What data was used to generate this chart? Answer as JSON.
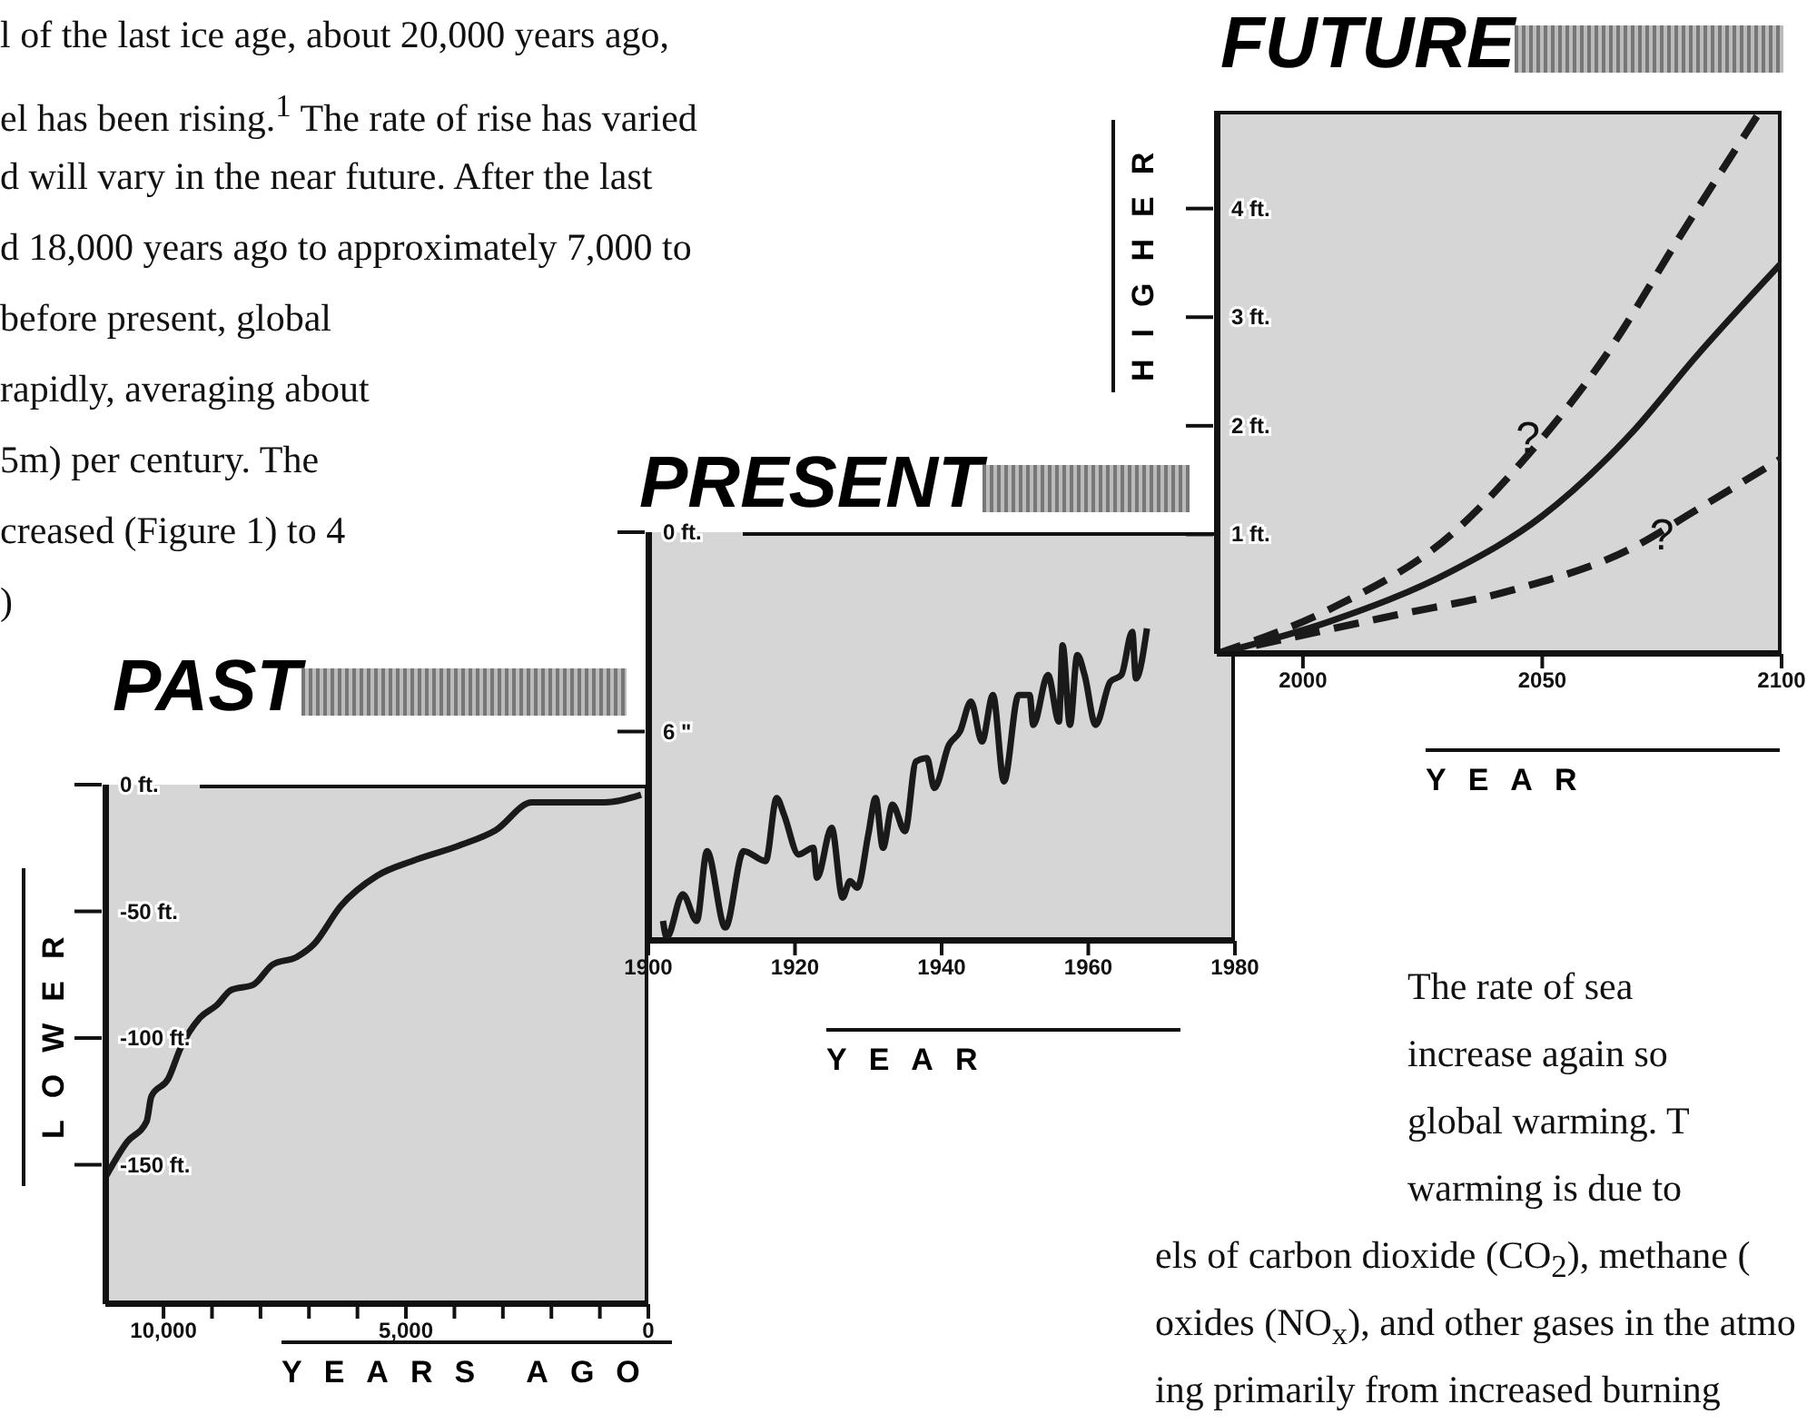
{
  "chart_data": [
    {
      "type": "line",
      "title": "PAST",
      "xlabel": "YEARS AGO",
      "ylabel": "LOWER",
      "xlim": [
        11200,
        0
      ],
      "xticks": [
        {
          "value": 10000,
          "label": "10,000"
        },
        {
          "value": 9000,
          "label": null
        },
        {
          "value": 8000,
          "label": null
        },
        {
          "value": 7000,
          "label": null
        },
        {
          "value": 6000,
          "label": null
        },
        {
          "value": 5000,
          "label": "5,000"
        },
        {
          "value": 4000,
          "label": null
        },
        {
          "value": 3000,
          "label": null
        },
        {
          "value": 2000,
          "label": null
        },
        {
          "value": 1000,
          "label": null
        },
        0
      ],
      "ylim": [
        -205,
        0
      ],
      "yticks": [
        {
          "value": 0,
          "label": "0 ft."
        },
        {
          "value": -50,
          "label": "-50 ft."
        },
        {
          "value": -100,
          "label": "-100 ft."
        },
        {
          "value": -150,
          "label": "-150 ft."
        }
      ],
      "line_style": "solid",
      "marker": "none",
      "grid": false,
      "series": [
        {
          "color": "#1a1a1a",
          "x": [
            11200,
            10750,
            10350,
            10250,
            9900,
            9650,
            9250,
            8900,
            8600,
            8150,
            7750,
            7250,
            6900,
            6350,
            5600,
            4850,
            3900,
            3150,
            2400,
            900,
            150
          ],
          "values": [
            -155,
            -141,
            -133,
            -123,
            -116,
            -104,
            -92,
            -87,
            -81,
            -79,
            -71,
            -68,
            -63,
            -48,
            -36,
            -30,
            -24,
            -18,
            -7,
            -7,
            -4
          ]
        }
      ],
      "annotations": [
        "l of the last ice age, about 20,000 years ago,",
        "el has been rising.$^{1}$ The rate of rise has varied",
        "d will vary in the near future.  After the last",
        "d 18,000 years ago to approximately 7,000 to",
        "before present, global",
        "rapidly, averaging about",
        "5m) per century.  The",
        "creased (Figure 1) to 4",
        ")"
      ]
    },
    {
      "type": "line",
      "title": "PRESENT",
      "xlabel": "YEAR",
      "xlim": [
        1900,
        1980
      ],
      "xticks": [
        1900,
        1920,
        1940,
        1960,
        1980
      ],
      "ylim": [
        -12.3,
        0
      ],
      "yticks": [
        {
          "value": 0,
          "label": "0 ft."
        },
        {
          "value": -6,
          "label": "6 \""
        }
      ],
      "line_style": "solid",
      "marker": "none",
      "grid": false,
      "series": [
        {
          "color": "#1a1a1a",
          "x": [
            1902,
            1902.5,
            1904.7,
            1906.6,
            1908,
            1910.5,
            1913,
            1916,
            1917.5,
            1918.5,
            1920.5,
            1922.5,
            1923,
            1925,
            1926.5,
            1927.5,
            1928.5,
            1930,
            1931,
            1932,
            1933.3,
            1935,
            1936.5,
            1938,
            1939,
            1941,
            1942.5,
            1944,
            1945.5,
            1947,
            1948.5,
            1950.5,
            1952,
            1952.5,
            1954.5,
            1956,
            1956.5,
            1957.5,
            1958.5,
            1959.5,
            1961,
            1963,
            1964.5,
            1966,
            1966.5,
            1968
          ],
          "values": [
            -11.7,
            -12.2,
            -10.9,
            -11.7,
            -9.6,
            -11.9,
            -9.6,
            -9.9,
            -8.0,
            -8.5,
            -9.7,
            -9.5,
            -10.4,
            -8.9,
            -11.0,
            -10.5,
            -10.7,
            -9.1,
            -8.0,
            -9.5,
            -8.2,
            -9.0,
            -6.9,
            -6.8,
            -7.7,
            -6.4,
            -6.0,
            -5.1,
            -6.3,
            -4.9,
            -7.5,
            -4.9,
            -4.9,
            -5.8,
            -4.3,
            -5.7,
            -3.4,
            -5.8,
            -3.7,
            -4.3,
            -5.8,
            -4.5,
            -4.3,
            -3.0,
            -4.4,
            -2.9
          ]
        }
      ]
    },
    {
      "type": "line",
      "title": "FUTURE",
      "xlabel": "YEAR",
      "ylabel": "HIGHER",
      "xlim": [
        1982,
        2100
      ],
      "xticks": [
        2000,
        2050,
        2100
      ],
      "ylim": [
        -0.1,
        4.9
      ],
      "yticks": [
        {
          "value": 1,
          "label": "1 ft."
        },
        {
          "value": 2,
          "label": "2 ft."
        },
        {
          "value": 3,
          "label": "3 ft."
        },
        {
          "value": 4,
          "label": "4 ft."
        }
      ],
      "marker": "none",
      "grid": false,
      "series": [
        {
          "color": "#1a1a1a",
          "line_style": "dashed",
          "x": [
            1982,
            2006,
            2031,
            2046,
            2063,
            2079,
            2095
          ],
          "values": [
            -0.1,
            0.32,
            1.0,
            1.68,
            2.63,
            3.76,
            4.86
          ]
        },
        {
          "color": "#1a1a1a",
          "line_style": "solid",
          "x": [
            1982,
            2005.7,
            2031,
            2050,
            2069,
            2082,
            2100
          ],
          "values": [
            -0.1,
            0.2,
            0.66,
            1.17,
            1.95,
            2.63,
            3.5
          ]
        },
        {
          "color": "#1a1a1a",
          "line_style": "dashed",
          "x": [
            1982,
            2018.6,
            2044,
            2069,
            2082,
            2100
          ],
          "values": [
            -0.1,
            0.25,
            0.49,
            0.88,
            1.22,
            1.7
          ]
        }
      ],
      "annotations": [
        {
          "text": "?",
          "x": 2047,
          "y": 1.9
        },
        {
          "text": "?",
          "x": 2075,
          "y": 1.0
        },
        "The rate of sea",
        "increase again so",
        "global warming. T",
        "warming is due to",
        "els of carbon dioxide (CO$_{2}$), methane (",
        "oxides (NO$_{x}$), and other gases in the atmo",
        "ing primarily from increased burning"
      ]
    }
  ]
}
